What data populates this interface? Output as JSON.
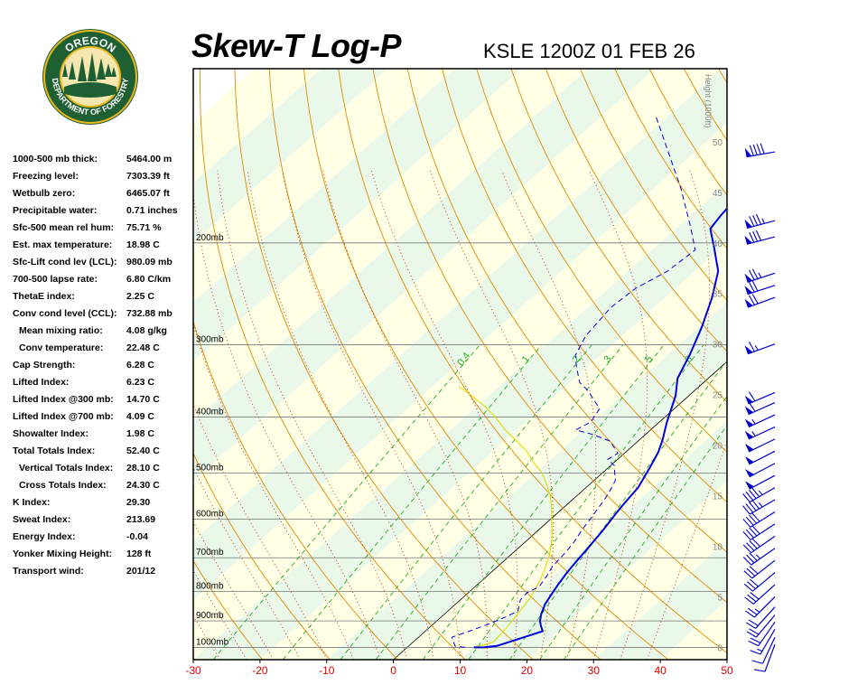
{
  "header": {
    "title": "Skew-T Log-P",
    "subtitle": "KSLE 1200Z 01 FEB 26"
  },
  "logo": {
    "top_text": "OREGON",
    "bottom_text": "DEPARTMENT OF FORESTRY",
    "colors": {
      "ring": "#1f5f34",
      "gold": "#e9b81e",
      "text": "#ffffff"
    }
  },
  "indices": [
    {
      "label": "1000-500 mb thick:",
      "value": "5464.00 m",
      "indent": false
    },
    {
      "label": "Freezing level:",
      "value": "7303.39 ft",
      "indent": false
    },
    {
      "label": "Wetbulb zero:",
      "value": "6465.07 ft",
      "indent": false
    },
    {
      "label": "Precipitable water:",
      "value": "0.71 inches",
      "indent": false
    },
    {
      "label": "Sfc-500 mean rel hum:",
      "value": "75.71 %",
      "indent": false
    },
    {
      "label": "Est. max temperature:",
      "value": "18.98 C",
      "indent": false
    },
    {
      "label": "Sfc-Lift cond lev (LCL):",
      "value": "980.09 mb",
      "indent": false
    },
    {
      "label": "700-500 lapse rate:",
      "value": "6.80 C/km",
      "indent": false
    },
    {
      "label": "ThetaE index:",
      "value": "2.25 C",
      "indent": false
    },
    {
      "label": "Conv cond level (CCL):",
      "value": "732.88 mb",
      "indent": false
    },
    {
      "label": "Mean mixing ratio:",
      "value": "4.08 g/kg",
      "indent": true
    },
    {
      "label": "Conv temperature:",
      "value": "22.48 C",
      "indent": true
    },
    {
      "label": "Cap Strength:",
      "value": "6.28 C",
      "indent": false
    },
    {
      "label": "Lifted Index:",
      "value": "6.23 C",
      "indent": false
    },
    {
      "label": "Lifted Index @300 mb:",
      "value": "14.70 C",
      "indent": false
    },
    {
      "label": "Lifted Index @700 mb:",
      "value": "4.09 C",
      "indent": false
    },
    {
      "label": "Showalter Index:",
      "value": "1.98 C",
      "indent": false
    },
    {
      "label": "Total Totals Index:",
      "value": "52.40 C",
      "indent": false
    },
    {
      "label": "Vertical Totals Index:",
      "value": "28.10 C",
      "indent": true
    },
    {
      "label": "Cross Totals Index:",
      "value": "24.30 C",
      "indent": true
    },
    {
      "label": "K Index:",
      "value": "29.30",
      "indent": false
    },
    {
      "label": "Sweat Index:",
      "value": "213.69",
      "indent": false
    },
    {
      "label": "Energy Index:",
      "value": "-0.04",
      "indent": false
    },
    {
      "label": "Yonker Mixing Height:",
      "value": "128 ft",
      "indent": false
    },
    {
      "label": "Transport wind:",
      "value": "201/12",
      "indent": false
    }
  ],
  "chart_data": {
    "type": "line",
    "xlim": [
      -30,
      50
    ],
    "x_ticks": [
      -30,
      -20,
      -10,
      0,
      10,
      20,
      30,
      40,
      50
    ],
    "pressure_levels": [
      {
        "p": 200,
        "label": "200mb"
      },
      {
        "p": 300,
        "label": "300mb"
      },
      {
        "p": 400,
        "label": "400mb"
      },
      {
        "p": 500,
        "label": "500mb"
      },
      {
        "p": 600,
        "label": "600mb"
      },
      {
        "p": 700,
        "label": "700mb"
      },
      {
        "p": 800,
        "label": "800mb"
      },
      {
        "p": 900,
        "label": "900mb"
      },
      {
        "p": 1000,
        "label": "1000mb"
      }
    ],
    "height_axis_label": "Height (1000ft)",
    "height_ticks": [
      0,
      5,
      10,
      15,
      20,
      25,
      30,
      35,
      40,
      45,
      50
    ],
    "mixing_ratio_labels": [
      {
        "w": 0.4,
        "label": "0.4"
      },
      {
        "w": 1,
        "label": "1"
      },
      {
        "w": 2,
        "label": "2"
      },
      {
        "w": 3,
        "label": "3"
      },
      {
        "w": 5,
        "label": "5"
      },
      {
        "w": 8,
        "label": "8"
      }
    ],
    "temperature_profile": [
      [
        10,
        0
      ],
      [
        11.5,
        0
      ],
      [
        13.2,
        0.15
      ],
      [
        15.8,
        1.0
      ],
      [
        17.6,
        1.6
      ],
      [
        16.5,
        2.1
      ],
      [
        15.5,
        2.6
      ],
      [
        14.5,
        3.3
      ],
      [
        13.4,
        4.3
      ],
      [
        12.7,
        5.3
      ],
      [
        12.1,
        6.2
      ],
      [
        11.4,
        7.4
      ],
      [
        10.9,
        8.6
      ],
      [
        10.6,
        9.4
      ],
      [
        10.2,
        10.4
      ],
      [
        9.6,
        11.8
      ],
      [
        8.9,
        13.1
      ],
      [
        8.4,
        14.2
      ],
      [
        7.8,
        15.8
      ],
      [
        6.2,
        17.8
      ],
      [
        4.9,
        19.3
      ],
      [
        3.5,
        20.5
      ],
      [
        1.1,
        22.3
      ],
      [
        -2.0,
        24.9
      ],
      [
        -4.6,
        26.6
      ],
      [
        -6.8,
        29.0
      ],
      [
        -9.6,
        31.7
      ],
      [
        -13.0,
        34.6
      ],
      [
        -16.5,
        37.2
      ],
      [
        -21.0,
        39.5
      ],
      [
        -24.8,
        41.4
      ],
      [
        -25.5,
        42.8
      ],
      [
        -26.5,
        46.0
      ],
      [
        -28.4,
        49.1
      ],
      [
        -32.4,
        52.8
      ]
    ],
    "dewpoint_profile": [
      [
        8.7,
        0
      ],
      [
        7.0,
        0.12
      ],
      [
        5.0,
        1.0
      ],
      [
        6.6,
        1.6
      ],
      [
        8.5,
        2.4
      ],
      [
        9.8,
        3.1
      ],
      [
        10.5,
        3.6
      ],
      [
        9.0,
        4.7
      ],
      [
        8.8,
        5.4
      ],
      [
        9.6,
        6.0
      ],
      [
        9.0,
        7.0
      ],
      [
        8.2,
        8.0
      ],
      [
        7.8,
        9.4
      ],
      [
        7.3,
        10.5
      ],
      [
        6.5,
        11.6
      ],
      [
        5.8,
        12.9
      ],
      [
        5.3,
        13.7
      ],
      [
        4.8,
        14.6
      ],
      [
        4.1,
        15.5
      ],
      [
        3.2,
        16.5
      ],
      [
        0.5,
        18.0
      ],
      [
        -1.5,
        18.6
      ],
      [
        -1.0,
        19.2
      ],
      [
        -4.2,
        20.4
      ],
      [
        -8.2,
        21.1
      ],
      [
        -11.2,
        21.5
      ],
      [
        -10.3,
        22.3
      ],
      [
        -11.2,
        23.6
      ],
      [
        -16.0,
        25.4
      ],
      [
        -18.6,
        26.2
      ],
      [
        -21.8,
        27.8
      ],
      [
        -23.8,
        28.9
      ],
      [
        -25.5,
        30.8
      ],
      [
        -26.5,
        33.6
      ],
      [
        -26.0,
        35.5
      ],
      [
        -24.1,
        37.2
      ],
      [
        -23.5,
        39.3
      ],
      [
        -28.1,
        41.6
      ],
      [
        -36.0,
        45.4
      ],
      [
        -44.0,
        49.0
      ],
      [
        -52.0,
        52.6
      ]
    ],
    "parcel_profile": [
      [
        10,
        0
      ],
      [
        12.0,
        0.5
      ],
      [
        11.9,
        1.0
      ],
      [
        11.6,
        1.9
      ],
      [
        11.2,
        2.8
      ],
      [
        10.8,
        3.6
      ],
      [
        10.3,
        4.6
      ],
      [
        9.6,
        5.6
      ],
      [
        8.6,
        6.7
      ],
      [
        7.4,
        7.8
      ],
      [
        6.0,
        9.0
      ],
      [
        4.3,
        10.2
      ],
      [
        2.4,
        11.4
      ],
      [
        0.6,
        12.4
      ],
      [
        -1.4,
        13.6
      ],
      [
        -3.8,
        14.9
      ],
      [
        -6.6,
        16.2
      ],
      [
        -9.2,
        17.3
      ],
      [
        -12.4,
        18.4
      ],
      [
        -15.0,
        19.4
      ],
      [
        -18.5,
        20.5
      ],
      [
        -21.8,
        21.5
      ],
      [
        -25.5,
        22.8
      ],
      [
        -29.0,
        23.9
      ],
      [
        -32.6,
        24.9
      ],
      [
        -36.0,
        25.8
      ]
    ],
    "wind_barbs": [
      {
        "h": 0.3,
        "dir": 200,
        "spd": 8
      },
      {
        "h": 1.0,
        "dir": 205,
        "spd": 12
      },
      {
        "h": 1.8,
        "dir": 210,
        "spd": 15
      },
      {
        "h": 2.5,
        "dir": 215,
        "spd": 18
      },
      {
        "h": 3.2,
        "dir": 220,
        "spd": 20
      },
      {
        "h": 4.0,
        "dir": 222,
        "spd": 22
      },
      {
        "h": 5.0,
        "dir": 225,
        "spd": 25
      },
      {
        "h": 6.2,
        "dir": 228,
        "spd": 28
      },
      {
        "h": 7.4,
        "dir": 230,
        "spd": 30
      },
      {
        "h": 8.6,
        "dir": 232,
        "spd": 32
      },
      {
        "h": 9.8,
        "dir": 235,
        "spd": 35
      },
      {
        "h": 11.0,
        "dir": 235,
        "spd": 38
      },
      {
        "h": 12.2,
        "dir": 237,
        "spd": 40
      },
      {
        "h": 13.4,
        "dir": 238,
        "spd": 42
      },
      {
        "h": 14.6,
        "dir": 240,
        "spd": 45
      },
      {
        "h": 15.8,
        "dir": 240,
        "spd": 45
      },
      {
        "h": 17.0,
        "dir": 242,
        "spd": 48
      },
      {
        "h": 18.2,
        "dir": 242,
        "spd": 50
      },
      {
        "h": 19.4,
        "dir": 243,
        "spd": 50
      },
      {
        "h": 20.6,
        "dir": 244,
        "spd": 52
      },
      {
        "h": 21.8,
        "dir": 245,
        "spd": 55
      },
      {
        "h": 23.0,
        "dir": 245,
        "spd": 55
      },
      {
        "h": 24.2,
        "dir": 246,
        "spd": 58
      },
      {
        "h": 25.2,
        "dir": 247,
        "spd": 60
      },
      {
        "h": 30.0,
        "dir": 250,
        "spd": 65
      },
      {
        "h": 34.6,
        "dir": 250,
        "spd": 70
      },
      {
        "h": 35.8,
        "dir": 252,
        "spd": 70
      },
      {
        "h": 37.0,
        "dir": 252,
        "spd": 75
      },
      {
        "h": 40.6,
        "dir": 255,
        "spd": 80
      },
      {
        "h": 42.2,
        "dir": 255,
        "spd": 85
      },
      {
        "h": 49.0,
        "dir": 260,
        "spd": 90
      }
    ],
    "colors": {
      "temperature": "#0000dd",
      "dewpoint": "#0000dd",
      "parcel": "#dede00",
      "isotherm": "#000000",
      "dry_adiabat": "#e08a00",
      "moist_adiabat": "#cc2200",
      "mixing_ratio": "#22aa22",
      "isobar": "#777777",
      "x_tick": "#dd0000",
      "barb": "#0000cc",
      "band_warm": "#ffffe6",
      "band_cool": "#e9f8e9"
    }
  }
}
